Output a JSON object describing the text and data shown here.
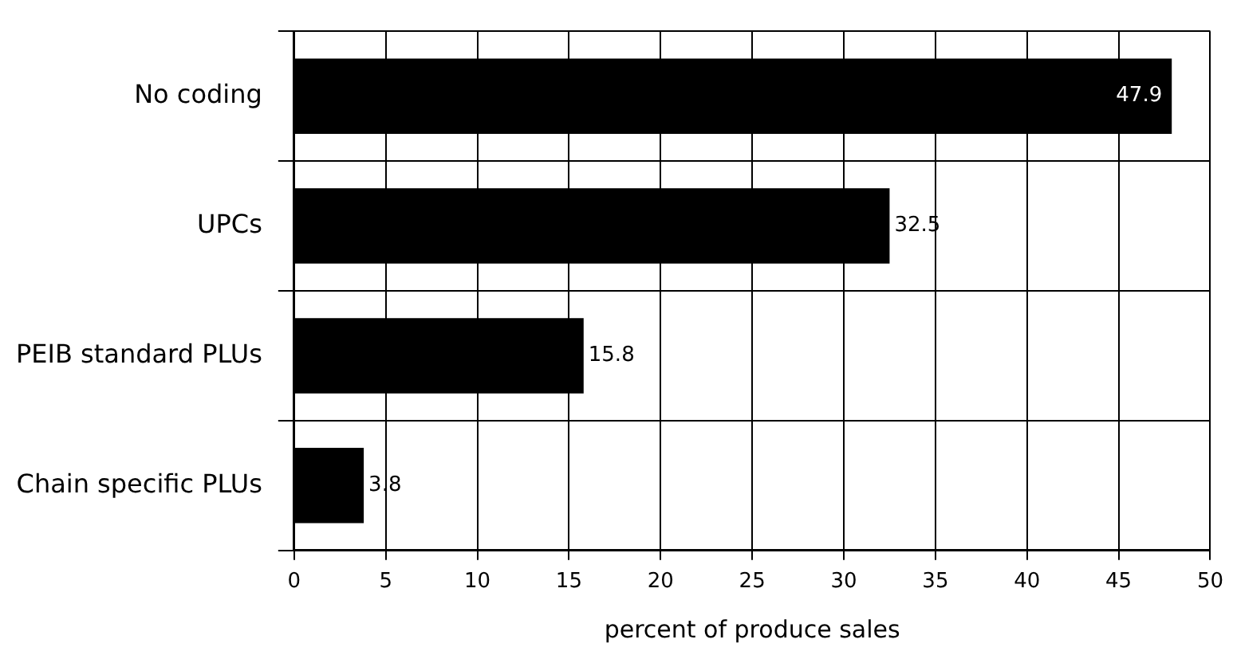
{
  "chart_data": {
    "type": "bar",
    "orientation": "horizontal",
    "xlabel": "percent of produce sales",
    "categories": [
      "No coding",
      "UPCs",
      "PEIB standard PLUs",
      "Chain specific PLUs"
    ],
    "values": [
      47.9,
      32.5,
      15.8,
      3.8
    ],
    "color": "#000000",
    "xlim": [
      0,
      50
    ],
    "xticks": [
      0,
      5,
      10,
      15,
      20,
      25,
      30,
      35,
      40,
      45,
      50
    ],
    "grid": true,
    "data_labels": true,
    "legend": false
  }
}
